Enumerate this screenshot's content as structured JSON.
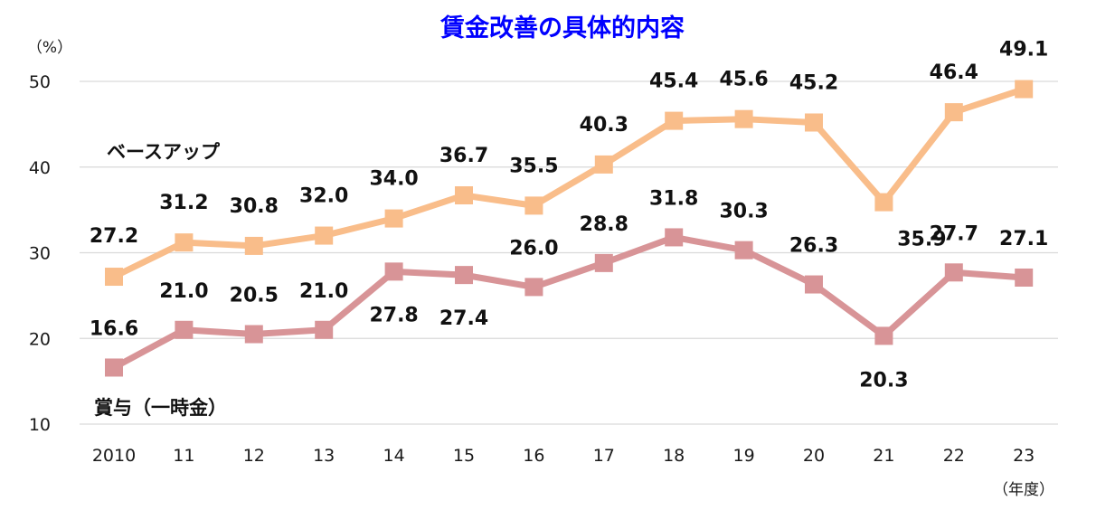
{
  "chart_data": {
    "type": "line",
    "title": "賃金改善の具体的内容",
    "ylabel": "（%）",
    "xlabel": "（年度）",
    "categories": [
      "2010",
      "11",
      "12",
      "13",
      "14",
      "15",
      "16",
      "17",
      "18",
      "19",
      "20",
      "21",
      "22",
      "23"
    ],
    "ylim": [
      10,
      50
    ],
    "yticks": [
      10,
      20,
      30,
      40,
      50
    ],
    "grid": true,
    "series": [
      {
        "name": "ベースアップ",
        "values": [
          27.2,
          31.2,
          30.8,
          32.0,
          34.0,
          36.7,
          35.5,
          40.3,
          45.4,
          45.6,
          45.2,
          35.9,
          46.4,
          49.1
        ],
        "labels": [
          "27.2",
          "31.2",
          "30.8",
          "32.0",
          "34.0",
          "36.7",
          "35.5",
          "40.3",
          "45.4",
          "45.6",
          "45.2",
          "35.9",
          "46.4",
          "49.1"
        ],
        "color": "#F9BD8A"
      },
      {
        "name": "賞与（一時金）",
        "values": [
          16.6,
          21.0,
          20.5,
          21.0,
          27.8,
          27.4,
          26.0,
          28.8,
          31.8,
          30.3,
          26.3,
          20.3,
          27.7,
          27.1
        ],
        "labels": [
          "16.6",
          "21.0",
          "20.5",
          "21.0",
          "27.8",
          "27.4",
          "26.0",
          "28.8",
          "31.8",
          "30.3",
          "26.3",
          "20.3",
          "27.7",
          "27.1"
        ],
        "color": "#D89497"
      }
    ],
    "colors": {
      "title": "#0000FF",
      "grid": "#D9D9D9",
      "text": "#111111"
    }
  }
}
